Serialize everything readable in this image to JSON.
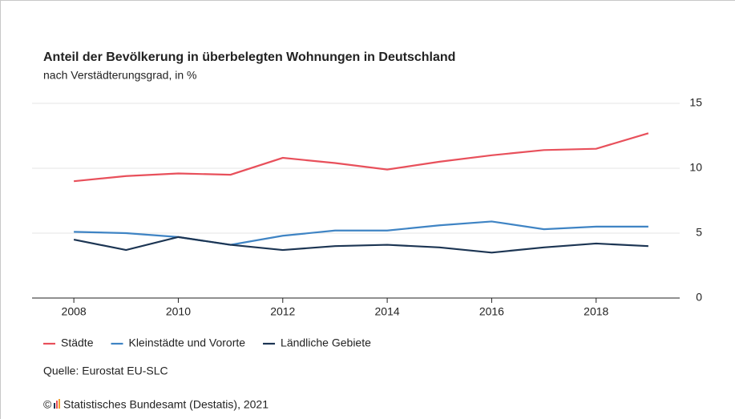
{
  "chart_data": {
    "type": "line",
    "title": "Anteil der Bevölkerung in überbelegten Wohnungen in Deutschland",
    "subtitle": "nach Verstädterungsgrad, in %",
    "x": [
      2008,
      2009,
      2010,
      2011,
      2012,
      2013,
      2014,
      2015,
      2016,
      2017,
      2018,
      2019
    ],
    "series": [
      {
        "name": "Städte",
        "color": "#e8505b",
        "values": [
          9.0,
          9.4,
          9.6,
          9.5,
          10.8,
          10.4,
          9.9,
          10.5,
          11.0,
          11.4,
          11.5,
          12.7
        ]
      },
      {
        "name": "Kleinstädte und Vororte",
        "color": "#3f84c4",
        "values": [
          5.1,
          5.0,
          4.7,
          4.1,
          4.8,
          5.2,
          5.2,
          5.6,
          5.9,
          5.3,
          5.5,
          5.5
        ]
      },
      {
        "name": "Ländliche Gebiete",
        "color": "#1c3553",
        "values": [
          4.5,
          3.7,
          4.7,
          4.1,
          3.7,
          4.0,
          4.1,
          3.9,
          3.5,
          3.9,
          4.2,
          4.0
        ]
      }
    ],
    "xlim": [
      2007.2,
      2019.6
    ],
    "xticks": [
      2008,
      2010,
      2012,
      2014,
      2016,
      2018
    ],
    "ylim": [
      0,
      15
    ],
    "yticks": [
      0,
      5,
      10,
      15
    ],
    "grid": true,
    "source": "Quelle: Eurostat EU-SLC",
    "copyright_symbol": "©",
    "copyright": "Statistisches Bundesamt (Destatis), 2021"
  }
}
